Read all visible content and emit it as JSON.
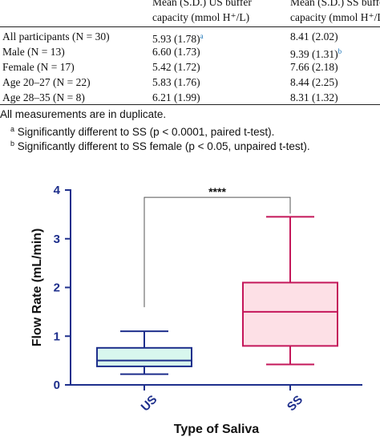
{
  "table": {
    "col1_header": [
      "Mean (S.D.) US buffer",
      "capacity (mmol H⁺/L)"
    ],
    "col2_header": [
      "Mean (S.D.) SS buffer",
      "capacity (mmol H⁺/L)"
    ],
    "rows": [
      {
        "group": "All participants (N = 30)",
        "us": "5.93 (1.78)",
        "us_note": "a",
        "ss": "8.41 (2.02)",
        "ss_note": ""
      },
      {
        "group": "Male (N = 13)",
        "us": "6.60 (1.73)",
        "us_note": "",
        "ss": "9.39 (1.31)",
        "ss_note": "b"
      },
      {
        "group": "Female (N = 17)",
        "us": "5.42 (1.72)",
        "us_note": "",
        "ss": "7.66 (2.18)",
        "ss_note": ""
      },
      {
        "group": "Age 20–27 (N = 22)",
        "us": "5.83 (1.76)",
        "us_note": "",
        "ss": "8.44 (2.25)",
        "ss_note": ""
      },
      {
        "group": "Age 28–35 (N = 8)",
        "us": "6.21 (1.99)",
        "us_note": "",
        "ss": "8.31 (1.32)",
        "ss_note": ""
      }
    ]
  },
  "notes": {
    "general": "All measurements are in duplicate.",
    "a_mark": "a",
    "a_text": "Significantly different to SS (p < 0.0001, paired t-test).",
    "b_mark": "b",
    "b_text": "Significantly different to SS female (p < 0.05, unpaired t-test)."
  },
  "chart_data": {
    "type": "box",
    "categories": [
      "US",
      "SS"
    ],
    "xlabel": "Type of Saliva",
    "ylabel": "Flow Rate (mL/min)",
    "ylim": [
      0,
      4
    ],
    "yticks": [
      0,
      1,
      2,
      3,
      4
    ],
    "grid": false,
    "boxes": [
      {
        "category": "US",
        "min": 0.22,
        "q1": 0.38,
        "median": 0.5,
        "q3": 0.76,
        "max": 1.1,
        "fill": "#d8f7ee",
        "stroke": "#1e2f8c"
      },
      {
        "category": "SS",
        "min": 0.42,
        "q1": 0.8,
        "median": 1.5,
        "q3": 2.1,
        "max": 3.45,
        "fill": "#fde0e6",
        "stroke": "#c4175a"
      }
    ],
    "significance": {
      "label": "****",
      "between": [
        "US",
        "SS"
      ],
      "y": 3.85
    },
    "axis_color": "#1e2f8c"
  }
}
